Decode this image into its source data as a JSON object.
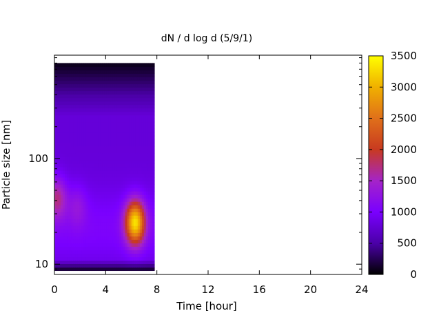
{
  "chart_data": {
    "type": "heatmap",
    "title": "dN / d log d (5/9/1)",
    "xlabel": "Time [hour]",
    "ylabel": "Particle size [nm]",
    "x_range": [
      0,
      24
    ],
    "x_ticks": [
      0,
      4,
      8,
      12,
      16,
      20,
      24
    ],
    "y_scale": "log",
    "y_range": [
      8,
      950
    ],
    "y_ticks": [
      10,
      100
    ],
    "data_x_range": [
      0,
      7.8
    ],
    "data_y_range": [
      8.7,
      800
    ],
    "colorbar": {
      "label": "",
      "range": [
        0,
        3500
      ],
      "ticks": [
        0,
        500,
        1000,
        1500,
        2000,
        2500,
        3000,
        3500
      ],
      "palette": "gnuplot",
      "colors": [
        "#000000",
        "#4b00a8",
        "#7a00ff",
        "#a524c8",
        "#c83a20",
        "#e0701a",
        "#f0b000",
        "#ffff00"
      ]
    },
    "features": [
      {
        "x_center": 6.3,
        "size_center_nm": 25,
        "peak_value": 3100
      },
      {
        "x_center": 0.2,
        "size_center_nm": 43,
        "peak_value": 1600
      },
      {
        "x_center": 1.8,
        "size_center_nm": 36,
        "peak_value": 1150
      }
    ],
    "grid": false,
    "legend": "none"
  }
}
